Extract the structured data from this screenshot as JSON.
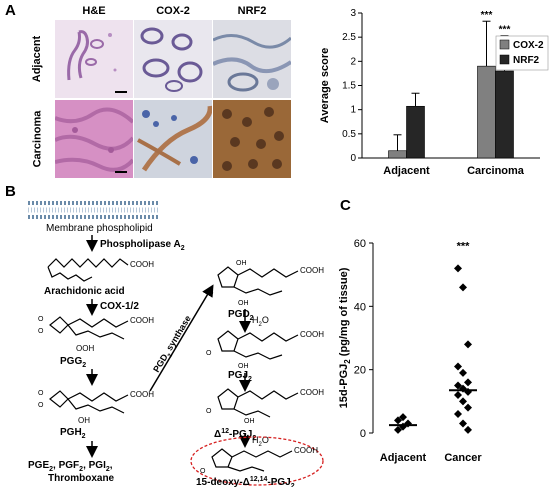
{
  "panel_labels": {
    "a": "A",
    "b": "B",
    "c": "C"
  },
  "panel_a": {
    "headers": [
      "H&E",
      "COX-2",
      "NRF2"
    ],
    "rows": [
      "Adjacent",
      "Carcinoma"
    ]
  },
  "panel_b": {
    "membrane": "Membrane phospholipid",
    "phospholipase": "Phospholipase A",
    "phospholipase_sub": "2",
    "arachidonic": "Arachidonic acid",
    "cox": "COX-1/2",
    "pgg2": "PGG",
    "pgh2": "PGH",
    "sub2": "2",
    "products_line1": "PGE",
    "products_line1_b": ", PGF",
    "products_line1_c": ", PGI",
    "products_line1_end": ",",
    "products_line2": "Thromboxane",
    "pgd_synthase": "PGD",
    "pgd_synthase_b": " synthase",
    "pgd2": "PGD",
    "pgj2": "PGJ",
    "delta12": "Δ",
    "delta12_sup": "12",
    "delta12_end": "-PGJ",
    "water": "H",
    "water_sub": "2",
    "water_end": "O",
    "final_pre": "15-deoxy-Δ",
    "final_sup": "12,14",
    "final_end": "-PGJ",
    "cooh": "COOH",
    "ooh": "OOH",
    "oh": "OH",
    "o": "O"
  },
  "chart_data": [
    {
      "type": "bar",
      "ylabel": "Average score",
      "categories": [
        "Adjacent",
        "Carcinoma"
      ],
      "ylim": [
        0,
        3
      ],
      "yticks": [
        "0",
        "0.5",
        "1",
        "1.5",
        "2",
        "2.5",
        "3"
      ],
      "series": [
        {
          "name": "COX-2",
          "values": [
            0.15,
            1.9
          ],
          "errors": [
            0.33,
            0.93
          ],
          "color": "#808080"
        },
        {
          "name": "NRF2",
          "values": [
            1.07,
            1.8
          ],
          "errors": [
            0.27,
            0.73
          ],
          "color": "#262626"
        }
      ],
      "annotations": [
        "***",
        "***"
      ],
      "legend": "top-right"
    },
    {
      "type": "scatter",
      "ylabel_pre": "15d-PGJ",
      "ylabel_sub": "2",
      "ylabel_post": " (pg/mg of tissue)",
      "categories": [
        "Adjacent",
        "Cancer"
      ],
      "ylim": [
        0,
        60
      ],
      "yticks": [
        "0",
        "20",
        "40",
        "60"
      ],
      "adjacent_points": [
        1,
        2,
        3,
        4,
        5
      ],
      "cancer_points": [
        52,
        46,
        28,
        21,
        19,
        16,
        15,
        14,
        13,
        12,
        10,
        8,
        6,
        3,
        1
      ],
      "adjacent_median": 2.5,
      "cancer_median": 13.5,
      "annotation": "***"
    }
  ]
}
